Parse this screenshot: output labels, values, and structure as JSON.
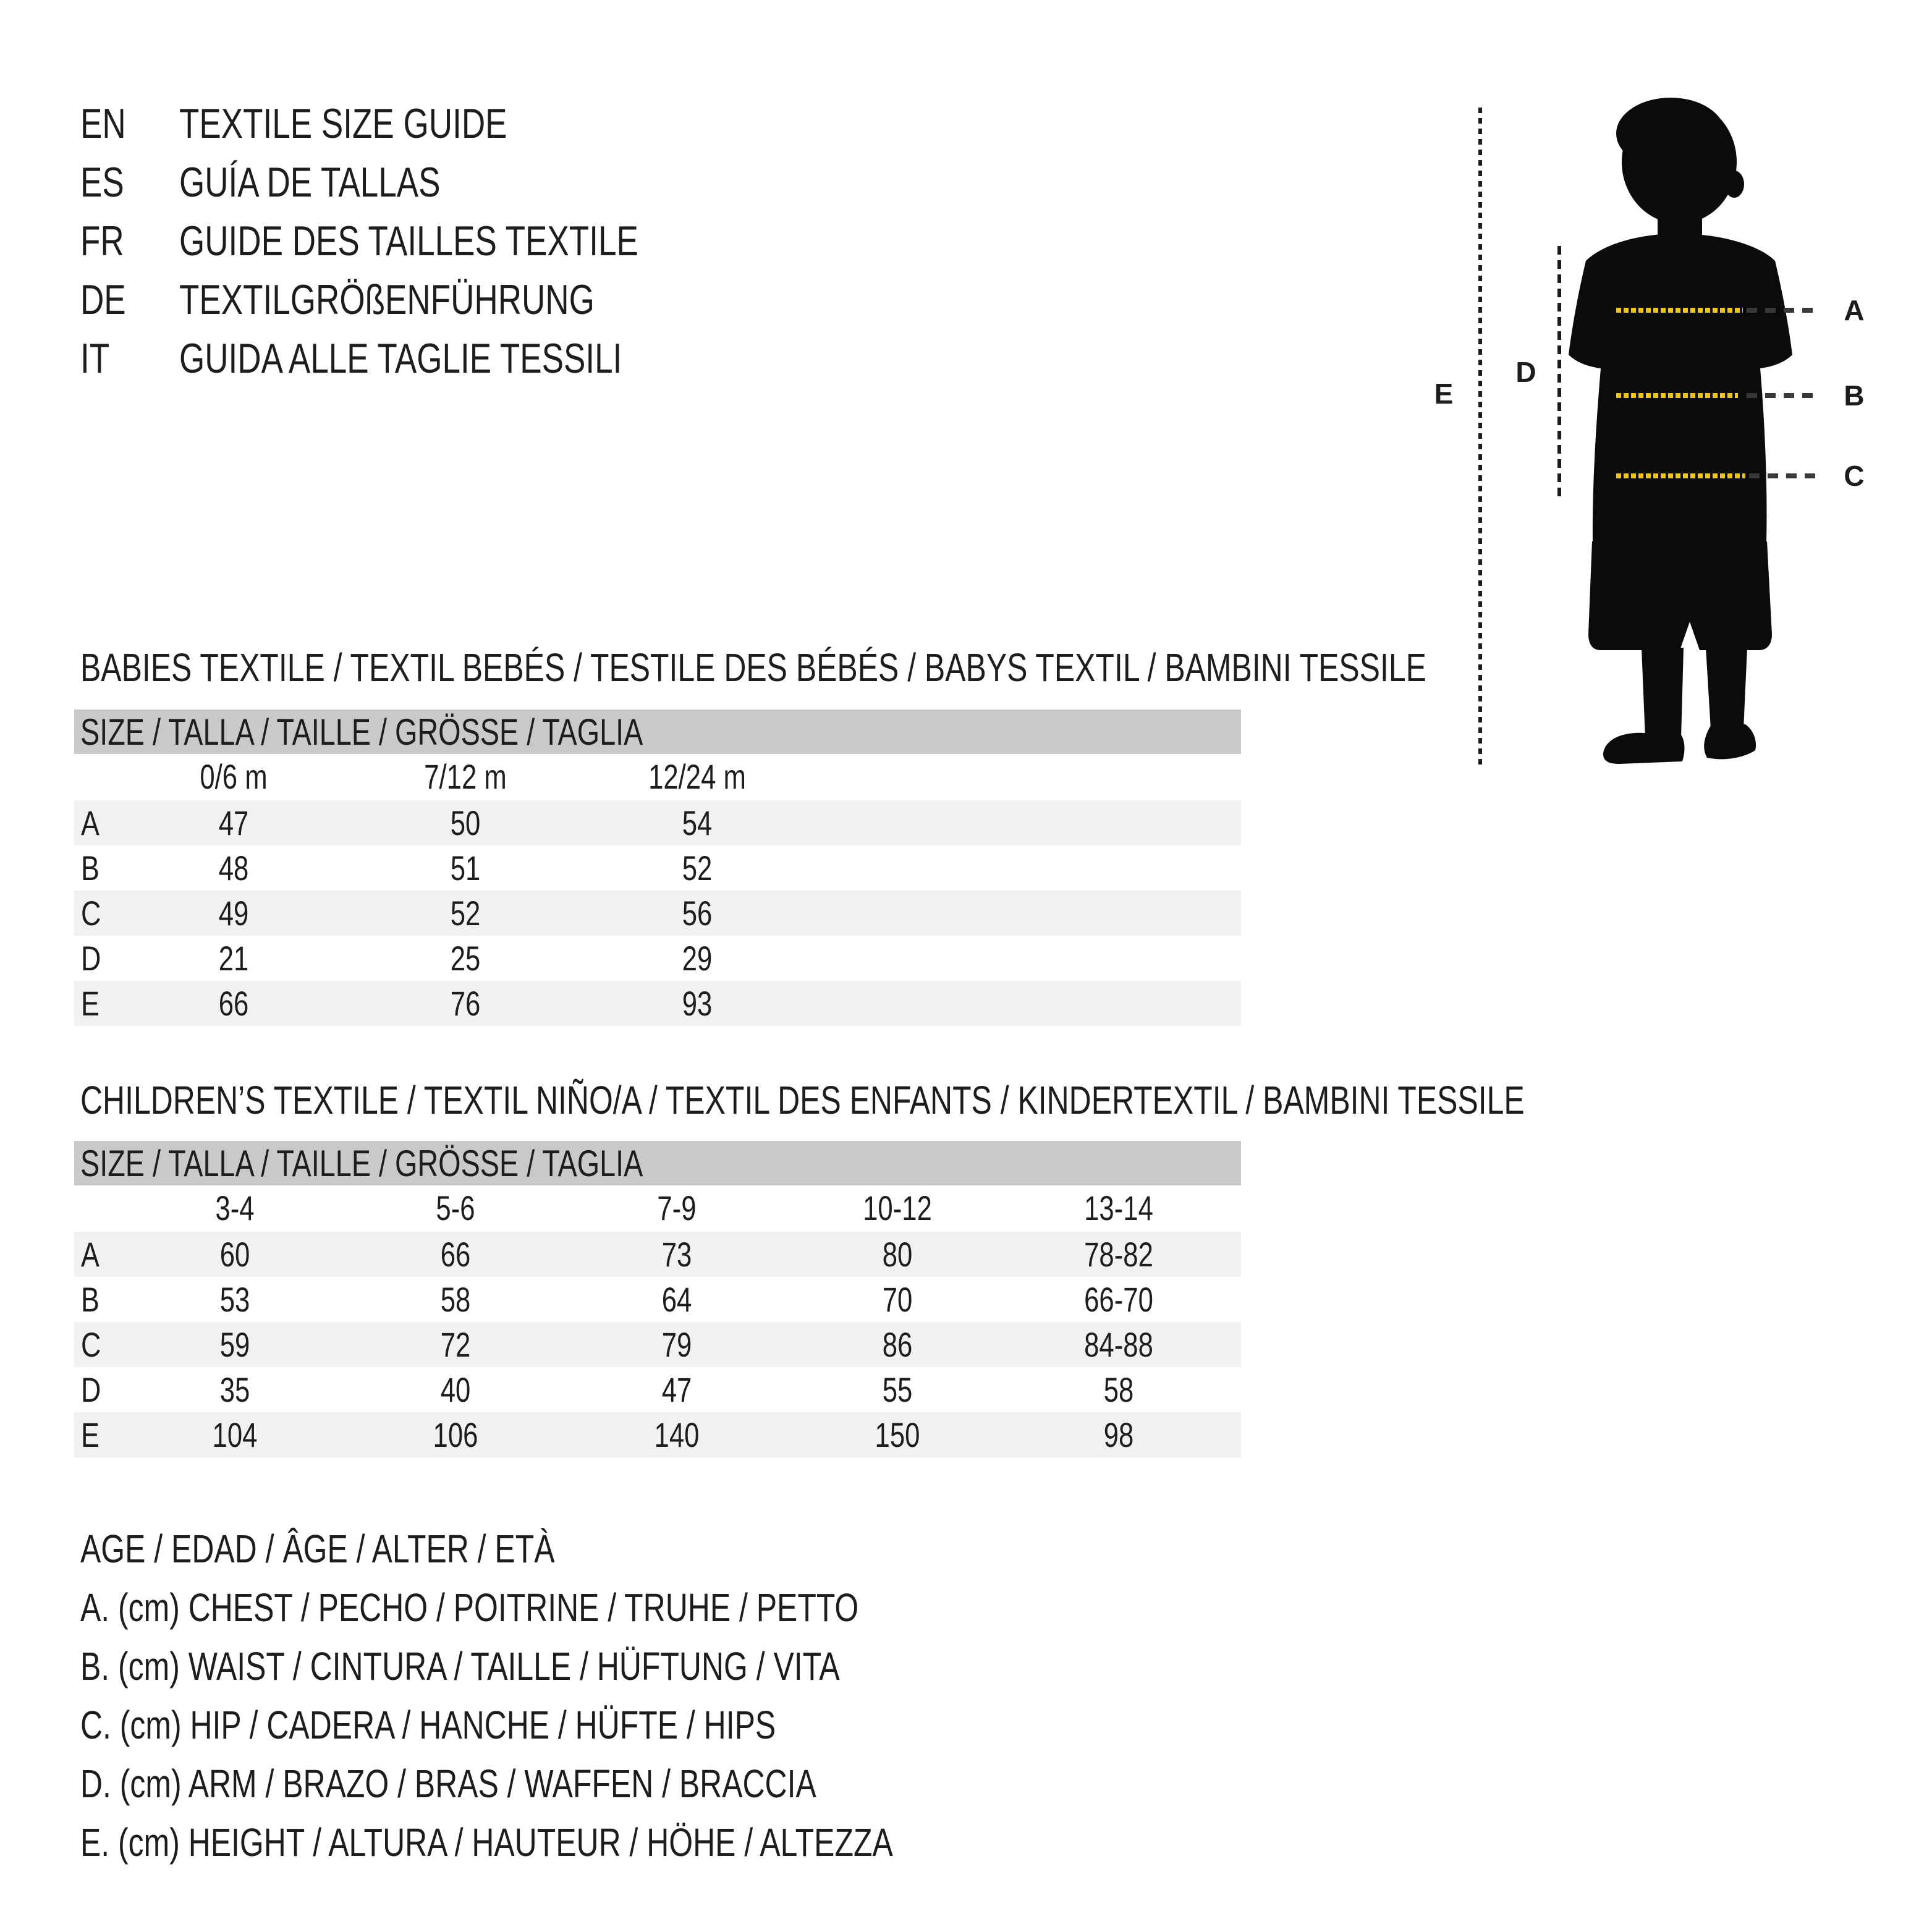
{
  "header": {
    "languages": [
      {
        "code": "EN",
        "label": "TEXTILE SIZE GUIDE"
      },
      {
        "code": "ES",
        "label": "GUÍA DE TALLAS"
      },
      {
        "code": "FR",
        "label": "GUIDE DES TAILLES TEXTILE"
      },
      {
        "code": "DE",
        "label": "TEXTILGRÖßENFÜHRUNG"
      },
      {
        "code": "IT",
        "label": "GUIDA ALLE TAGLIE TESSILI"
      }
    ]
  },
  "figure": {
    "labels": {
      "a": "A",
      "b": "B",
      "c": "C",
      "d": "D",
      "e": "E"
    },
    "colors": {
      "silhouette": "#0b0b0b",
      "measure_dash_yellow": "#eec61d",
      "measure_dash_dark": "#383836"
    }
  },
  "babies_table": {
    "section_title": "BABIES TEXTILE / TEXTIL BEBÉS / TESTILE DES BÉBÉS / BABYS TEXTIL / BAMBINI TESSILE",
    "size_header": "SIZE / TALLA / TAILLE / GRÖSSE / TAGLIA",
    "columns": [
      "0/6 m",
      "7/12 m",
      "12/24 m"
    ],
    "rows": [
      {
        "label": "A",
        "values": [
          "47",
          "50",
          "54"
        ]
      },
      {
        "label": "B",
        "values": [
          "48",
          "51",
          "52"
        ]
      },
      {
        "label": "C",
        "values": [
          "49",
          "52",
          "56"
        ]
      },
      {
        "label": "D",
        "values": [
          "21",
          "25",
          "29"
        ]
      },
      {
        "label": "E",
        "values": [
          "66",
          "76",
          "93"
        ]
      }
    ]
  },
  "children_table": {
    "section_title": "CHILDREN’S TEXTILE / TEXTIL NIÑO/A / TEXTIL DES ENFANTS / KINDERTEXTIL / BAMBINI TESSILE",
    "size_header": "SIZE / TALLA / TAILLE / GRÖSSE / TAGLIA",
    "columns": [
      "3-4",
      "5-6",
      "7-9",
      "10-12",
      "13-14"
    ],
    "rows": [
      {
        "label": "A",
        "values": [
          "60",
          "66",
          "73",
          "80",
          "78-82"
        ]
      },
      {
        "label": "B",
        "values": [
          "53",
          "58",
          "64",
          "70",
          "66-70"
        ]
      },
      {
        "label": "C",
        "values": [
          "59",
          "72",
          "79",
          "86",
          "84-88"
        ]
      },
      {
        "label": "D",
        "values": [
          "35",
          "40",
          "47",
          "55",
          "58"
        ]
      },
      {
        "label": "E",
        "values": [
          "104",
          "106",
          "140",
          "150",
          "98"
        ]
      }
    ]
  },
  "legend": {
    "lines": [
      "AGE / EDAD / ÂGE / ALTER / ETÀ",
      "A. (cm) CHEST / PECHO / POITRINE / TRUHE / PETTO",
      "B. (cm) WAIST / CINTURA / TAILLE / HÜFTUNG / VITA",
      "C. (cm) HIP / CADERA / HANCHE / HÜFTE / HIPS",
      "D. (cm) ARM / BRAZO / BRAS / WAFFEN / BRACCIA",
      "E. (cm) HEIGHT / ALTURA / HAUTEUR / HÖHE / ALTEZZA"
    ]
  },
  "colors": {
    "ink": "#1d1d1b",
    "header_bar": "#c9c9c9",
    "row_shade": "#f1f1f0",
    "background": "#ffffff"
  }
}
